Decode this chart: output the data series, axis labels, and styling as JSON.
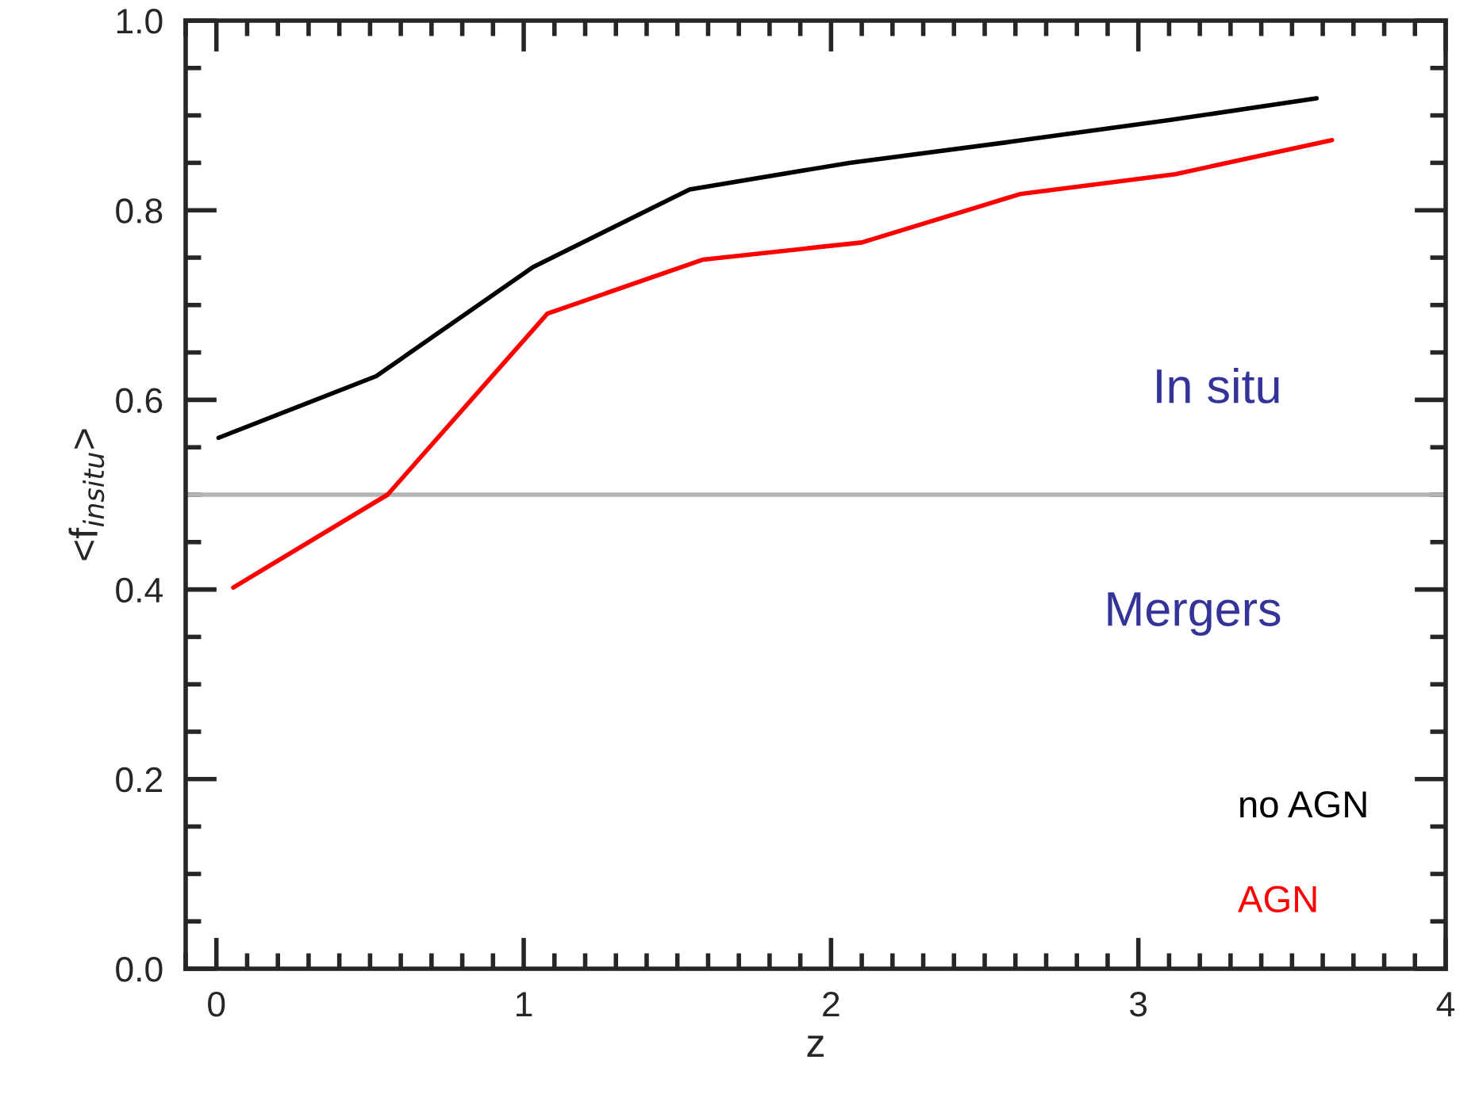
{
  "chart_data": {
    "type": "line",
    "xlabel": "z",
    "ylabel": "<f$_{insitu}$>",
    "series": [
      {
        "name": "no AGN",
        "color": "#000000",
        "x": [
          0.007,
          0.52,
          1.03,
          1.54,
          2.06,
          2.58,
          3.1,
          3.58
        ],
        "values": [
          0.56,
          0.625,
          0.74,
          0.822,
          0.85,
          0.872,
          0.895,
          0.918
        ]
      },
      {
        "name": "AGN",
        "color": "#ff0000",
        "x": [
          0.055,
          0.557,
          1.077,
          1.584,
          2.1,
          2.615,
          3.12,
          3.63
        ],
        "values": [
          0.402,
          0.5,
          0.691,
          0.748,
          0.766,
          0.817,
          0.838,
          0.874
        ]
      }
    ],
    "xlim": [
      -0.1,
      4
    ],
    "xticks": [
      0,
      1,
      2,
      3,
      4
    ],
    "ylim": [
      0,
      1
    ],
    "yticks": [
      {
        "value": 0,
        "label": "0.0"
      },
      0.2,
      0.4,
      0.6,
      0.8,
      {
        "value": 1,
        "label": "1.0"
      }
    ],
    "ref_lines": [
      {
        "axis": "y",
        "value": 0.5,
        "color": "#b4b4b4"
      }
    ],
    "annotations": [
      "In situ",
      "Mergers"
    ],
    "grid": false,
    "legend": "bottom right",
    "line_style": "solid",
    "marker": "none"
  }
}
